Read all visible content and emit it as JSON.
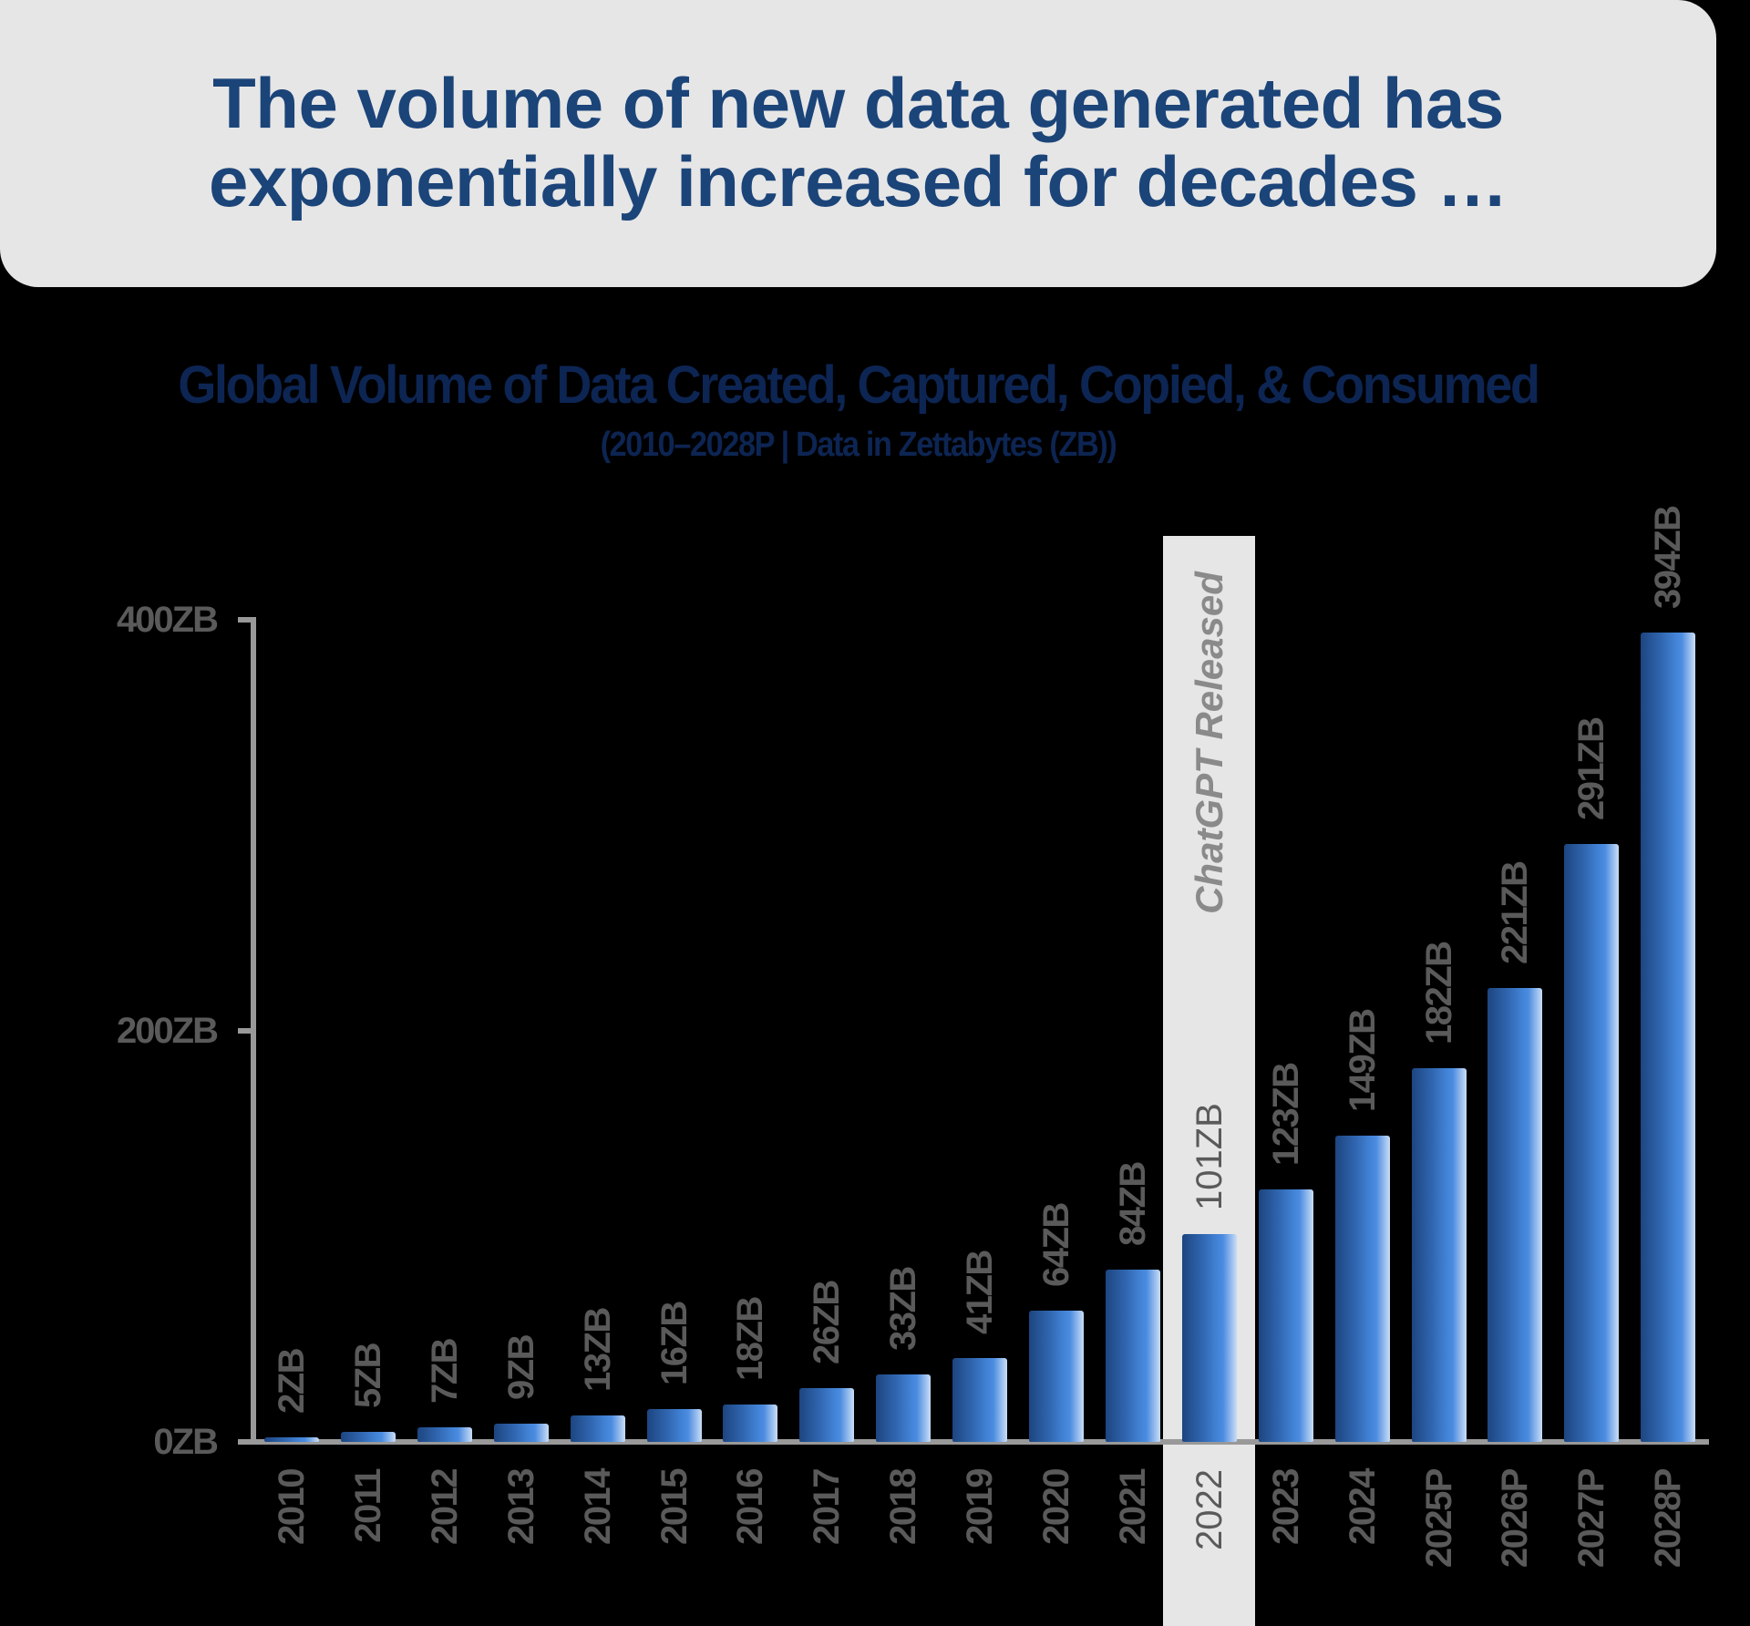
{
  "header": {
    "line1": "The volume of new data generated has",
    "line2": "exponentially increased for decades …"
  },
  "chart": {
    "title": "Global Volume of Data Created, Captured, Copied, & Consumed",
    "subtitle": "(2010–2028P | Data in Zettabytes (ZB))",
    "annotation": "ChatGPT Released",
    "y_ticks": [
      "400ZB",
      "200ZB",
      "0ZB"
    ]
  },
  "colors": {
    "header_bg": "#e6e6e6",
    "header_text": "#1b4479",
    "title_text": "#0d2553",
    "bar_dark": "#1d4580",
    "bar_mid": "#4384d8",
    "bar_light": "#c9ddf6",
    "label_gray": "#5a5a5a",
    "annotation_gray": "#8a8a8a",
    "axis_gray": "#999999"
  },
  "chart_data": {
    "type": "bar",
    "title": "Global Volume of Data Created, Captured, Copied, & Consumed",
    "subtitle": "(2010–2028P | Data in Zettabytes (ZB))",
    "xlabel": "",
    "ylabel": "",
    "ylim": [
      0,
      400
    ],
    "y_ticks": [
      0,
      200,
      400
    ],
    "y_tick_labels": [
      "0ZB",
      "200ZB",
      "400ZB"
    ],
    "grid": false,
    "categories": [
      "2010",
      "2011",
      "2012",
      "2013",
      "2014",
      "2015",
      "2016",
      "2017",
      "2018",
      "2019",
      "2020",
      "2021",
      "2022",
      "2023",
      "2024",
      "2025P",
      "2026P",
      "2027P",
      "2028P"
    ],
    "values": [
      2,
      5,
      7,
      9,
      13,
      16,
      18,
      26,
      33,
      41,
      64,
      84,
      101,
      123,
      149,
      182,
      221,
      291,
      394
    ],
    "value_labels": [
      "2ZB",
      "5ZB",
      "7ZB",
      "9ZB",
      "13ZB",
      "16ZB",
      "18ZB",
      "26ZB",
      "33ZB",
      "41ZB",
      "64ZB",
      "84ZB",
      "101ZB",
      "123ZB",
      "149ZB",
      "182ZB",
      "221ZB",
      "291ZB",
      "394ZB"
    ],
    "annotations": [
      {
        "category": "2022",
        "text": "ChatGPT Released",
        "style": "highlight-band"
      }
    ]
  }
}
